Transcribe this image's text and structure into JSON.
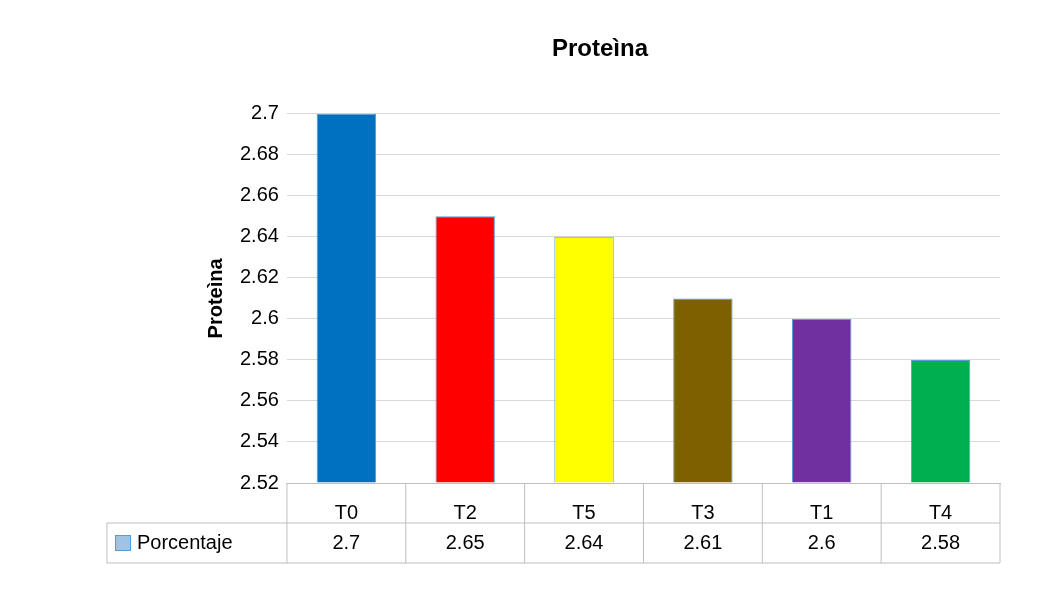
{
  "chart_data": {
    "type": "bar",
    "title": "Proteìna",
    "ylabel": "Proteìna",
    "categories": [
      "T0",
      "T2",
      "T5",
      "T3",
      "T1",
      "T4"
    ],
    "series": [
      {
        "name": "Porcentaje",
        "color": "#9dc3e6",
        "colors": [
          "#0070c0",
          "#ff0000",
          "#ffff00",
          "#7f6000",
          "#7030a0",
          "#00b050"
        ],
        "values": [
          2.7,
          2.65,
          2.64,
          2.61,
          2.6,
          2.58
        ]
      }
    ],
    "ylim": [
      2.52,
      2.7
    ],
    "yticks": [
      2.52,
      2.54,
      2.56,
      2.58,
      2.6,
      2.62,
      2.64,
      2.66,
      2.68,
      2.7
    ],
    "grid": "y",
    "data_labels": true,
    "legend": "bottom left"
  }
}
